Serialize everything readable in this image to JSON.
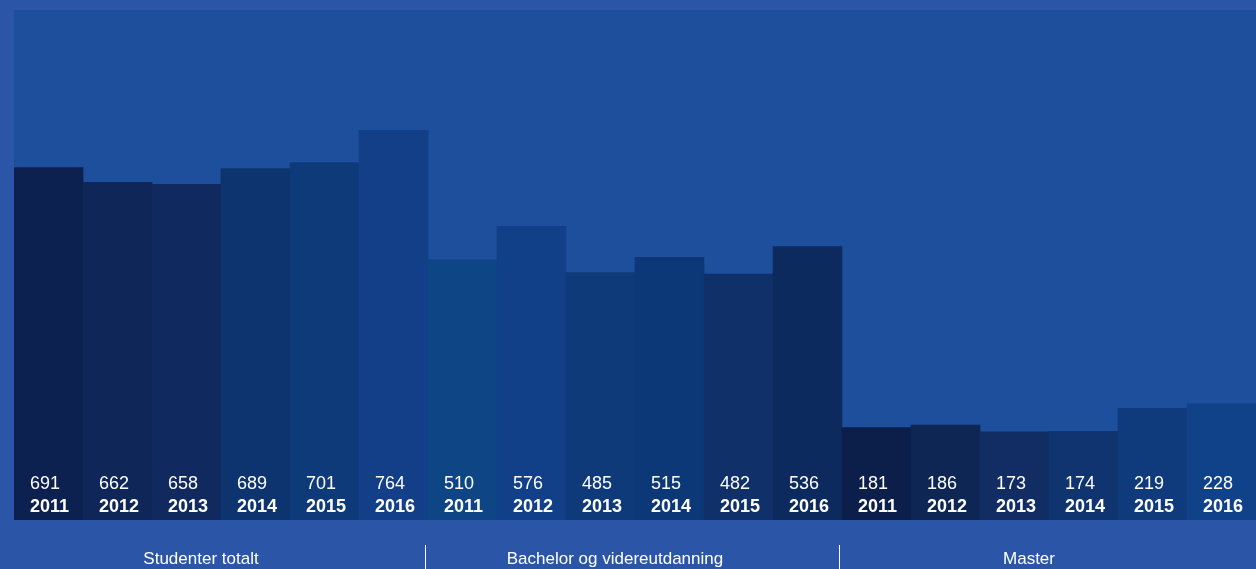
{
  "chart_data": {
    "type": "bar",
    "categories": [
      "2011",
      "2012",
      "2013",
      "2014",
      "2015",
      "2016",
      "2011",
      "2012",
      "2013",
      "2014",
      "2015",
      "2016",
      "2011",
      "2012",
      "2013",
      "2014",
      "2015",
      "2016"
    ],
    "values": [
      691,
      662,
      658,
      689,
      701,
      764,
      510,
      576,
      485,
      515,
      482,
      536,
      181,
      186,
      173,
      174,
      219,
      228
    ],
    "colors": [
      "#0c2150",
      "#0e2758",
      "#10295e",
      "#0e3470",
      "#0f3a7a",
      "#123f87",
      "#0d4585",
      "#114088",
      "#0f3a7a",
      "#0c3878",
      "#10306a",
      "#0d2a5e",
      "#0c1e4a",
      "#0d2654",
      "#112d63",
      "#0f3470",
      "#0f3a7c",
      "#0f4288"
    ],
    "ylim": [
      0,
      1000
    ],
    "data_labels": true,
    "legend": false,
    "annotations": [
      "Studenter totalt",
      "Bachelor og videreutdanning",
      "Master"
    ]
  }
}
